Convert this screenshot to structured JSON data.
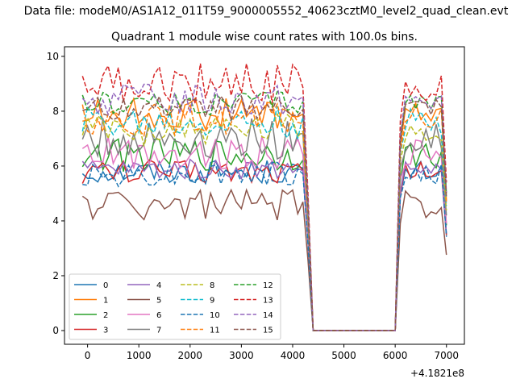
{
  "figure": {
    "suptitle": "Data file: modeM0/AS1A12_011T59_9000005552_40623cztM0_level2_quad_clean.evt",
    "title": "Quadrant 1 module wise count rates with 100.0s bins.",
    "x_offset_label": "+4.1821e8"
  },
  "chart_data": {
    "type": "line",
    "title": "Quadrant 1 module wise count rates with 100.0s bins.",
    "xlabel": "",
    "ylabel": "",
    "xlim": [
      -450,
      7350
    ],
    "ylim": [
      -0.5,
      10.35
    ],
    "x_ticks": [
      0,
      1000,
      2000,
      3000,
      4000,
      5000,
      6000,
      7000
    ],
    "y_ticks": [
      0,
      2,
      4,
      6,
      8,
      10
    ],
    "grid": false,
    "legend": {
      "placement": "lower-left",
      "columns": 4
    },
    "x": [
      -100,
      0,
      100,
      200,
      300,
      400,
      500,
      600,
      700,
      800,
      900,
      1000,
      1100,
      1200,
      1300,
      1400,
      1500,
      1600,
      1700,
      1800,
      1900,
      2000,
      2100,
      2200,
      2300,
      2400,
      2500,
      2600,
      2700,
      2800,
      2900,
      3000,
      3100,
      3200,
      3300,
      3400,
      3500,
      3600,
      3700,
      3800,
      3900,
      4000,
      4100,
      4200,
      4300,
      4400,
      6000,
      6100,
      6200,
      6300,
      6400,
      6500,
      6600,
      6700,
      6800,
      6900,
      7000
    ],
    "series": [
      {
        "name": "0",
        "color": "#1f77b4",
        "dash": "solid",
        "level": 5.8,
        "amp": 0.15
      },
      {
        "name": "1",
        "color": "#ff7f0e",
        "dash": "solid",
        "level": 7.9,
        "amp": 0.2
      },
      {
        "name": "2",
        "color": "#2ca02c",
        "dash": "solid",
        "level": 6.4,
        "amp": 0.2
      },
      {
        "name": "3",
        "color": "#d62728",
        "dash": "solid",
        "level": 5.8,
        "amp": 0.15
      },
      {
        "name": "4",
        "color": "#9467bd",
        "dash": "solid",
        "level": 5.9,
        "amp": 0.12
      },
      {
        "name": "5",
        "color": "#8c564b",
        "dash": "solid",
        "level": 4.6,
        "amp": 0.2
      },
      {
        "name": "6",
        "color": "#e377c2",
        "dash": "solid",
        "level": 6.5,
        "amp": 0.2
      },
      {
        "name": "7",
        "color": "#7f7f7f",
        "dash": "solid",
        "level": 7.0,
        "amp": 0.25
      },
      {
        "name": "8",
        "color": "#bcbd22",
        "dash": "dashed",
        "level": 7.3,
        "amp": 0.2
      },
      {
        "name": "9",
        "color": "#17becf",
        "dash": "dashed",
        "level": 7.6,
        "amp": 0.2
      },
      {
        "name": "10",
        "color": "#1f77b4",
        "dash": "dashed",
        "level": 5.7,
        "amp": 0.15
      },
      {
        "name": "11",
        "color": "#ff7f0e",
        "dash": "dashed",
        "level": 7.7,
        "amp": 0.2
      },
      {
        "name": "12",
        "color": "#2ca02c",
        "dash": "dashed",
        "level": 8.3,
        "amp": 0.15
      },
      {
        "name": "13",
        "color": "#d62728",
        "dash": "dashed",
        "level": 9.0,
        "amp": 0.25
      },
      {
        "name": "14",
        "color": "#9467bd",
        "dash": "dashed",
        "level": 8.4,
        "amp": 0.2
      },
      {
        "name": "15",
        "color": "#8c564b",
        "dash": "dashed",
        "level": 8.1,
        "amp": 0.15
      }
    ]
  }
}
